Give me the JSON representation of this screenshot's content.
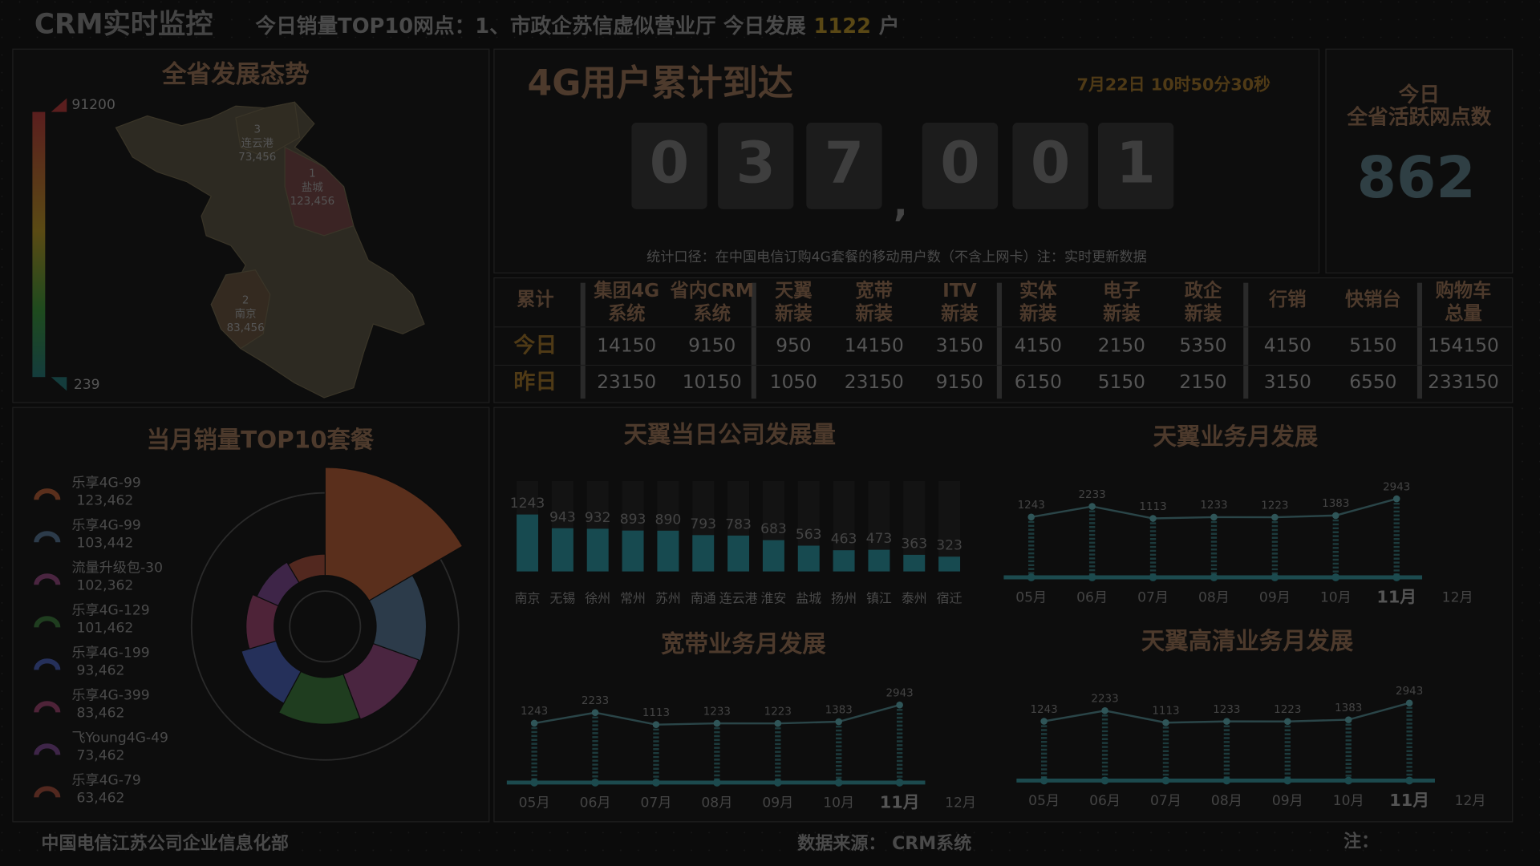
{
  "header": {
    "title": "CRM实时监控",
    "ticker": "今日销量TOP10网点：1、市政企苏信虚似营业厅 今日发展",
    "ticker_value": "1122",
    "ticker_unit": "户"
  },
  "map": {
    "title": "全省发展态势",
    "scale_max": "91200",
    "scale_min": "239",
    "labels": [
      {
        "rank": "3",
        "city": "连云港",
        "value": "73,456"
      },
      {
        "rank": "1",
        "city": "盐城",
        "value": "123,456"
      },
      {
        "rank": "2",
        "city": "南京",
        "value": "83,456"
      }
    ]
  },
  "counter": {
    "title": "4G用户累计到达",
    "time": "7月22日 10时50分30秒",
    "digits": [
      "0",
      "3",
      "7",
      "0",
      "0",
      "1"
    ],
    "separator": ",",
    "note": "统计口径：在中国电信订购4G套餐的移动用户数（不含上网卡）注：实时更新数据"
  },
  "active": {
    "title_line1": "今日",
    "title_line2": "全省活跃网点数",
    "value": "862"
  },
  "table": {
    "headers": [
      [
        "累计"
      ],
      [
        "集团4G",
        "系统"
      ],
      [
        "省内CRM",
        "系统"
      ],
      [
        "天翼",
        "新装"
      ],
      [
        "宽带",
        "新装"
      ],
      [
        "ITV",
        "新装"
      ],
      [
        "实体",
        "新装"
      ],
      [
        "电子",
        "新装"
      ],
      [
        "政企",
        "新装"
      ],
      [
        "行销"
      ],
      [
        "快销台"
      ],
      [
        "购物车",
        "总量"
      ]
    ],
    "rows": [
      {
        "label": "今日",
        "values": [
          14150,
          9150,
          950,
          14150,
          3150,
          4150,
          2150,
          5350,
          4150,
          5150,
          154150
        ]
      },
      {
        "label": "昨日",
        "values": [
          23150,
          10150,
          1050,
          23150,
          9150,
          6150,
          5150,
          2150,
          3150,
          6550,
          233150
        ]
      }
    ]
  },
  "chart_data": [
    {
      "type": "pie",
      "title": "当月销量TOP10套餐",
      "categories": [
        "乐享4G-99",
        "乐享4G-99",
        "流量升级包-30",
        "乐享4G-129",
        "乐享4G-199",
        "乐享4G-399",
        "飞Young4G-49",
        "乐享4G-79"
      ],
      "values": [
        123462,
        103442,
        102362,
        101462,
        93462,
        83462,
        73462,
        63462
      ],
      "value_labels": [
        "123,462",
        "103,442",
        "102,362",
        "101,462",
        "93,462",
        "83,462",
        "73,462",
        "63,462"
      ],
      "colors": [
        "#5a2f1c",
        "#2c3b4a",
        "#4a2540",
        "#1f3d1f",
        "#25305a",
        "#4e2338",
        "#3e2548",
        "#52281f"
      ]
    },
    {
      "type": "bar",
      "title": "天翼当日公司发展量",
      "categories": [
        "南京",
        "无锡",
        "徐州",
        "常州",
        "苏州",
        "南通",
        "连云港",
        "淮安",
        "盐城",
        "扬州",
        "镇江",
        "泰州",
        "宿迁"
      ],
      "values": [
        1243,
        943,
        932,
        893,
        890,
        793,
        783,
        683,
        563,
        463,
        473,
        363,
        323
      ],
      "color": "#174a50"
    },
    {
      "type": "line",
      "title": "天翼业务月发展",
      "categories": [
        "05月",
        "06月",
        "07月",
        "08月",
        "09月",
        "10月",
        "11月",
        "12月"
      ],
      "values": [
        1243,
        2233,
        1113,
        1233,
        1223,
        1383,
        2943,
        null
      ],
      "color": "#1c4a4e",
      "highlight_category": "11月"
    },
    {
      "type": "line",
      "title": "宽带业务月发展",
      "categories": [
        "05月",
        "06月",
        "07月",
        "08月",
        "09月",
        "10月",
        "11月",
        "12月"
      ],
      "values": [
        1243,
        2233,
        1113,
        1233,
        1223,
        1383,
        2943,
        null
      ],
      "color": "#1c4a4e",
      "highlight_category": "11月"
    },
    {
      "type": "line",
      "title": "天翼高清业务月发展",
      "categories": [
        "05月",
        "06月",
        "07月",
        "08月",
        "09月",
        "10月",
        "11月",
        "12月"
      ],
      "values": [
        1243,
        2233,
        1113,
        1233,
        1223,
        1383,
        2943,
        null
      ],
      "color": "#1c4a4e",
      "highlight_category": "11月"
    }
  ],
  "footer": {
    "org": "中国电信江苏公司企业信息化部",
    "source": "数据来源： CRM系统",
    "note": "注："
  }
}
